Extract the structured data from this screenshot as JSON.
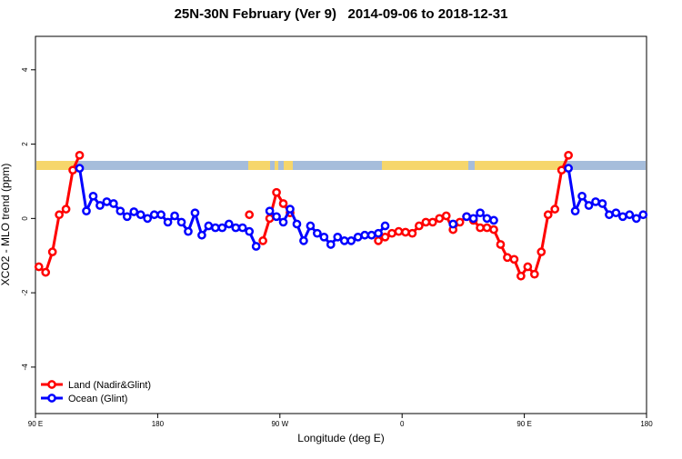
{
  "chart_data": {
    "type": "line",
    "title": "25N-30N February (Ver 9)   2014-09-06 to 2018-12-31",
    "xlabel": "Longitude (deg E)",
    "ylabel": "XCO2 - MLO trend (ppm)",
    "xlim": [
      90,
      540
    ],
    "ylim": [
      -5.25,
      4.9
    ],
    "xticks": [
      {
        "value": 90,
        "label": "90 E"
      },
      180,
      {
        "value": 270,
        "label": "90 W"
      },
      {
        "value": 360,
        "label": "0"
      },
      {
        "value": 450,
        "label": "90 E"
      },
      {
        "value": 540,
        "label": "180"
      }
    ],
    "yticks": [
      -4,
      -2,
      0,
      2,
      4
    ],
    "grid": false,
    "legend": "bottomleft",
    "x": [
      92.5,
      97.5,
      102.5,
      107.5,
      112.5,
      117.5,
      122.5,
      127.5,
      132.5,
      137.5,
      142.5,
      147.5,
      152.5,
      157.5,
      162.5,
      167.5,
      172.5,
      177.5,
      182.5,
      187.5,
      192.5,
      197.5,
      202.5,
      207.5,
      212.5,
      217.5,
      222.5,
      227.5,
      232.5,
      237.5,
      242.5,
      247.5,
      252.5,
      257.5,
      262.5,
      267.5,
      272.5,
      277.5,
      282.5,
      287.5,
      292.5,
      297.5,
      302.5,
      307.5,
      312.5,
      317.5,
      322.5,
      327.5,
      332.5,
      337.5,
      342.5,
      347.5,
      352.5,
      357.5,
      362.5,
      367.5,
      372.5,
      377.5,
      382.5,
      387.5,
      392.5,
      397.5,
      402.5,
      407.5,
      412.5,
      417.5,
      422.5,
      427.5,
      432.5,
      437.5,
      442.5,
      447.5,
      452.5,
      457.5,
      462.5,
      467.5,
      472.5,
      477.5,
      482.5,
      487.5,
      492.5,
      497.5,
      502.5,
      507.5,
      512.5,
      517.5,
      522.5,
      527.5,
      532.5,
      537.5
    ],
    "series": [
      {
        "name": "Land (Nadir&Glint)",
        "color": "#ff0000",
        "values": [
          -1.3,
          -1.45,
          -0.9,
          0.1,
          0.25,
          1.3,
          1.7,
          null,
          null,
          null,
          null,
          null,
          null,
          null,
          null,
          null,
          null,
          null,
          null,
          null,
          null,
          null,
          null,
          null,
          null,
          null,
          null,
          null,
          null,
          null,
          null,
          0.1,
          null,
          -0.6,
          0.0,
          0.7,
          0.4,
          0.15,
          null,
          null,
          null,
          null,
          null,
          null,
          null,
          null,
          null,
          null,
          null,
          null,
          -0.6,
          -0.5,
          -0.4,
          -0.35,
          -0.37,
          -0.4,
          -0.2,
          -0.1,
          -0.1,
          0.0,
          0.07,
          -0.3,
          -0.1,
          0.05,
          -0.05,
          -0.25,
          -0.25,
          -0.3,
          -0.7,
          -1.05,
          -1.1,
          -1.55,
          -1.3,
          -1.5,
          -0.9,
          0.1,
          0.25,
          1.3,
          1.7,
          null,
          null,
          null,
          null,
          null,
          null,
          null,
          null,
          null,
          null,
          null
        ]
      },
      {
        "name": "Ocean (Glint)",
        "color": "#0000ff",
        "values": [
          null,
          null,
          null,
          null,
          null,
          null,
          1.35,
          0.2,
          0.6,
          0.35,
          0.45,
          0.4,
          0.2,
          0.05,
          0.18,
          0.1,
          0.0,
          0.1,
          0.1,
          -0.1,
          0.07,
          -0.1,
          -0.35,
          0.15,
          -0.45,
          -0.2,
          -0.25,
          -0.25,
          -0.15,
          -0.25,
          -0.25,
          -0.35,
          -0.75,
          null,
          0.2,
          0.05,
          -0.1,
          0.25,
          -0.15,
          -0.6,
          -0.2,
          -0.4,
          -0.5,
          -0.7,
          -0.5,
          -0.6,
          -0.6,
          -0.5,
          -0.45,
          -0.45,
          -0.4,
          -0.2,
          null,
          null,
          null,
          null,
          null,
          null,
          null,
          null,
          null,
          -0.15,
          null,
          0.05,
          0.0,
          0.15,
          0.0,
          -0.05,
          null,
          null,
          null,
          null,
          null,
          null,
          null,
          null,
          null,
          null,
          1.35,
          0.2,
          0.6,
          0.35,
          0.45,
          0.4,
          0.1,
          0.15,
          0.05,
          0.1,
          0.0,
          0.1
        ]
      }
    ]
  }
}
